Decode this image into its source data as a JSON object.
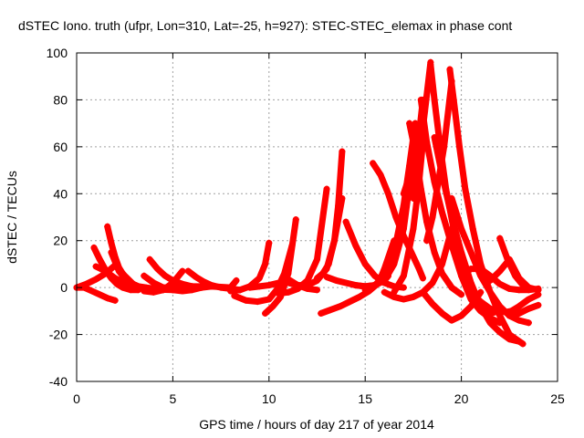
{
  "chart_data": {
    "type": "scatter",
    "title": "dSTEC Iono. truth (ufpr, Lon=310, Lat=-25, h=927): STEC-STEC_elemax in phase cont",
    "xlabel": "GPS time / hours of day 217 of year 2014",
    "ylabel": "dSTEC  / TECUs",
    "xlim": [
      0,
      25
    ],
    "ylim": [
      -40,
      100
    ],
    "xticks": [
      0,
      5,
      10,
      15,
      20,
      25
    ],
    "yticks": [
      -40,
      -20,
      0,
      20,
      40,
      60,
      80,
      100
    ],
    "grid": true,
    "marker": "plus",
    "color": "#ff0000",
    "series": [
      {
        "x": [
          0.0,
          0.4,
          0.8,
          1.2,
          1.6,
          2.0
        ],
        "y": [
          0.0,
          0.0,
          -1.5,
          -3.0,
          -4.5,
          -5.5
        ]
      },
      {
        "x": [
          0.0,
          0.5,
          1.0,
          1.5,
          2.0,
          2.5,
          3.0,
          3.5,
          4.0
        ],
        "y": [
          0.0,
          1.5,
          3.5,
          6.0,
          9.5,
          5.0,
          1.0,
          -0.5,
          -1.0
        ]
      },
      {
        "x": [
          0.9,
          1.2,
          1.5,
          1.8,
          2.1,
          2.4,
          2.8,
          3.2
        ],
        "y": [
          17.0,
          12.0,
          7.5,
          4.0,
          1.5,
          0.0,
          -1.0,
          -1.0
        ]
      },
      {
        "x": [
          1.6,
          1.8,
          2.0,
          2.2,
          2.5,
          2.8,
          3.2,
          3.6,
          4.2,
          5.0
        ],
        "y": [
          26.0,
          19.0,
          13.0,
          8.5,
          4.5,
          2.0,
          0.5,
          -0.3,
          -0.8,
          -1.0
        ]
      },
      {
        "x": [
          1.0,
          1.5,
          2.0,
          2.5,
          3.0,
          3.5,
          4.0
        ],
        "y": [
          9.0,
          7.0,
          4.0,
          2.0,
          0.5,
          0.0,
          -0.5
        ]
      },
      {
        "x": [
          1.8,
          2.0,
          2.2,
          2.5,
          2.8,
          3.2,
          3.6,
          4.0,
          4.5
        ],
        "y": [
          15.0,
          11.0,
          7.0,
          4.0,
          2.0,
          0.5,
          0.0,
          -0.5,
          -1.0
        ]
      },
      {
        "x": [
          3.8,
          4.2,
          4.6,
          5.0,
          5.5,
          6.0,
          6.5
        ],
        "y": [
          12.0,
          8.0,
          5.0,
          3.0,
          1.5,
          0.5,
          0.0
        ]
      },
      {
        "x": [
          3.5,
          4.0,
          4.5,
          5.0,
          5.5
        ],
        "y": [
          -1.5,
          -2.0,
          -1.0,
          2.0,
          7.0
        ]
      },
      {
        "x": [
          3.5,
          4.0,
          4.5,
          5.0,
          5.5,
          6.0,
          6.5,
          7.0
        ],
        "y": [
          5.0,
          2.0,
          0.0,
          -1.0,
          -1.5,
          -1.0,
          0.0,
          0.5
        ]
      },
      {
        "x": [
          5.8,
          6.2,
          6.6,
          7.0,
          7.5,
          8.0,
          8.5
        ],
        "y": [
          7.0,
          4.5,
          2.5,
          1.0,
          0.0,
          -0.5,
          -1.0
        ]
      },
      {
        "x": [
          4.0,
          5.0,
          6.0,
          7.0,
          8.0,
          8.3
        ],
        "y": [
          0.0,
          0.0,
          0.5,
          0.5,
          0.0,
          3.0
        ]
      },
      {
        "x": [
          8.0,
          8.5,
          9.0,
          9.5,
          9.8,
          10.0
        ],
        "y": [
          -1.5,
          -1.0,
          0.5,
          4.0,
          10.0,
          19.0
        ]
      },
      {
        "x": [
          8.2,
          8.8,
          9.4,
          10.0,
          10.4,
          10.8,
          11.2
        ],
        "y": [
          -3.5,
          -5.5,
          -6.0,
          -5.0,
          -1.0,
          6.0,
          18.0
        ]
      },
      {
        "x": [
          9.8,
          10.2,
          10.6,
          11.0,
          11.4
        ],
        "y": [
          -11.0,
          -8.0,
          -4.0,
          6.0,
          29.0
        ]
      },
      {
        "x": [
          9.0,
          9.5,
          10.0,
          10.5,
          11.0,
          11.5,
          12.0,
          12.5
        ],
        "y": [
          0.0,
          0.5,
          1.0,
          2.0,
          3.5,
          1.0,
          -0.5,
          -1.0
        ]
      },
      {
        "x": [
          11.0,
          11.5,
          12.0,
          12.5,
          13.0,
          13.4,
          13.8
        ],
        "y": [
          2.0,
          1.0,
          1.0,
          3.0,
          8.0,
          20.0,
          38.0
        ]
      },
      {
        "x": [
          10.5,
          11.0,
          11.5,
          12.0,
          12.5,
          13.0
        ],
        "y": [
          -2.5,
          -2.0,
          -0.5,
          3.0,
          12.0,
          42.0
        ]
      },
      {
        "x": [
          12.5,
          12.8,
          13.1,
          13.4,
          13.6,
          13.8
        ],
        "y": [
          4.0,
          6.0,
          10.0,
          20.0,
          35.0,
          58.0
        ]
      },
      {
        "x": [
          12.7,
          13.2,
          13.7,
          14.2,
          14.7,
          15.2,
          15.7,
          16.0,
          16.5
        ],
        "y": [
          -11.0,
          -9.5,
          -8.0,
          -6.0,
          -4.0,
          -1.5,
          2.0,
          8.0,
          20.0
        ]
      },
      {
        "x": [
          13.0,
          13.5,
          14.0,
          14.5,
          15.0,
          15.5,
          16.0,
          16.2
        ],
        "y": [
          4.5,
          3.0,
          2.0,
          1.0,
          0.5,
          1.0,
          3.0,
          5.0
        ]
      },
      {
        "x": [
          14.0,
          14.5,
          15.0,
          15.5,
          16.0,
          16.5,
          17.0
        ],
        "y": [
          28.0,
          18.0,
          10.0,
          5.0,
          2.0,
          0.5,
          0.0
        ]
      },
      {
        "x": [
          15.4,
          15.8,
          16.2,
          16.6,
          17.0,
          17.4,
          17.8,
          18.0
        ],
        "y": [
          53.0,
          48.0,
          40.0,
          30.0,
          22.0,
          15.0,
          8.0,
          4.0
        ]
      },
      {
        "x": [
          14.5,
          15.0,
          15.5,
          16.0,
          16.5,
          17.0,
          17.5
        ],
        "y": [
          1.0,
          0.5,
          1.0,
          3.0,
          10.0,
          25.0,
          56.0
        ]
      },
      {
        "x": [
          15.0,
          15.5,
          16.0,
          16.5,
          17.0,
          17.3,
          17.6
        ],
        "y": [
          -1.0,
          1.0,
          5.0,
          15.0,
          35.0,
          52.0,
          70.0
        ]
      },
      {
        "x": [
          16.0,
          16.5,
          17.0,
          17.5,
          18.0,
          18.5,
          19.0,
          19.5
        ],
        "y": [
          -2.0,
          -4.0,
          -5.0,
          -4.0,
          -2.0,
          2.0,
          10.0,
          25.0
        ]
      },
      {
        "x": [
          17.3,
          17.6,
          17.9,
          18.2,
          18.6,
          19.0,
          19.5,
          20.0
        ],
        "y": [
          70.0,
          58.0,
          42.0,
          28.0,
          15.0,
          6.0,
          0.0,
          -3.0
        ]
      },
      {
        "x": [
          16.5,
          17.0,
          17.5,
          17.8,
          18.0
        ],
        "y": [
          -2.0,
          5.0,
          25.0,
          45.0,
          62.0
        ]
      },
      {
        "x": [
          17.0,
          17.4,
          17.8,
          18.0
        ],
        "y": [
          40.0,
          50.0,
          65.0,
          80.0
        ]
      },
      {
        "x": [
          17.9,
          18.2,
          18.6,
          19.0,
          19.5,
          20.0,
          20.5,
          21.0,
          21.5,
          22.0
        ],
        "y": [
          80.0,
          62.0,
          45.0,
          32.0,
          18.0,
          5.0,
          -5.0,
          -10.0,
          -13.0,
          -15.0
        ]
      },
      {
        "x": [
          17.5,
          17.8,
          18.1,
          18.4
        ],
        "y": [
          38.0,
          55.0,
          75.0,
          96.0
        ]
      },
      {
        "x": [
          18.4,
          18.6,
          18.9,
          19.2,
          19.6,
          20.0,
          20.5,
          21.0,
          21.5,
          22.0
        ],
        "y": [
          95.0,
          80.0,
          60.0,
          42.0,
          25.0,
          10.0,
          -2.0,
          -8.0,
          -11.0,
          -10.0
        ]
      },
      {
        "x": [
          18.2,
          18.5,
          18.8,
          19.1,
          19.5
        ],
        "y": [
          20.0,
          30.0,
          45.0,
          60.0,
          88.0
        ]
      },
      {
        "x": [
          18.6,
          19.0,
          19.5,
          20.0,
          20.5,
          21.0,
          21.5,
          22.0,
          22.5,
          23.0
        ],
        "y": [
          64.0,
          48.0,
          30.0,
          15.0,
          2.0,
          -8.0,
          -15.0,
          -19.0,
          -22.0,
          -23.0
        ]
      },
      {
        "x": [
          19.4,
          19.6,
          19.9,
          20.2,
          20.6,
          21.0,
          21.5,
          22.0,
          22.5,
          23.2
        ],
        "y": [
          93.0,
          80.0,
          60.0,
          42.0,
          25.0,
          10.0,
          -2.0,
          -12.0,
          -20.0,
          -24.0
        ]
      },
      {
        "x": [
          19.5,
          20.0,
          20.5,
          21.0,
          21.5,
          22.0,
          22.5,
          23.0,
          23.5
        ],
        "y": [
          38.0,
          25.0,
          15.0,
          5.0,
          -2.0,
          -8.0,
          -12.0,
          -14.0,
          -15.0
        ]
      },
      {
        "x": [
          18.0,
          18.5,
          19.0,
          19.5,
          20.0,
          20.5,
          21.0
        ],
        "y": [
          -2.0,
          -7.0,
          -11.0,
          -14.0,
          -12.0,
          -8.0,
          -2.0
        ]
      },
      {
        "x": [
          20.0,
          20.5,
          21.0,
          21.5,
          22.0,
          22.5,
          23.0,
          23.5,
          24.0
        ],
        "y": [
          5.0,
          8.0,
          8.0,
          5.0,
          1.5,
          -0.5,
          -1.0,
          -1.0,
          -0.5
        ]
      },
      {
        "x": [
          20.5,
          21.0,
          21.5,
          22.0,
          22.3,
          22.6,
          23.0,
          23.5,
          24.0
        ],
        "y": [
          -2.0,
          -6.0,
          -9.0,
          -10.0,
          -10.5,
          -10.0,
          -8.0,
          -5.0,
          -3.0
        ]
      },
      {
        "x": [
          22.0,
          22.4,
          22.8,
          23.2,
          23.6,
          24.0
        ],
        "y": [
          21.0,
          12.0,
          5.0,
          1.0,
          -0.5,
          -1.0
        ]
      },
      {
        "x": [
          21.5,
          22.0,
          22.5,
          23.0,
          23.5,
          24.0
        ],
        "y": [
          3.0,
          7.0,
          12.0,
          4.0,
          0.0,
          -1.0
        ]
      },
      {
        "x": [
          22.5,
          23.0,
          23.5,
          24.0
        ],
        "y": [
          -12.0,
          -11.0,
          -9.0,
          -7.5
        ]
      }
    ]
  }
}
